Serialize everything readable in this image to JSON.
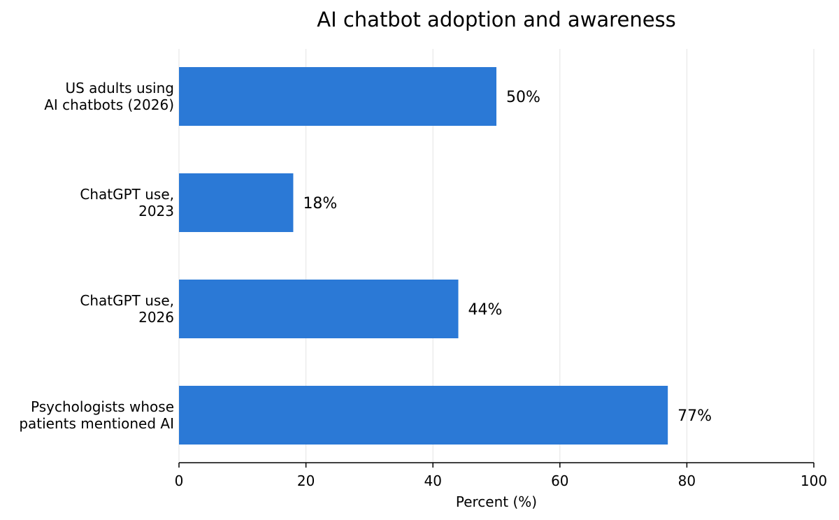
{
  "chart_data": {
    "type": "bar",
    "orientation": "horizontal",
    "title": "AI chatbot adoption and awareness",
    "xlabel": "Percent (%)",
    "ylabel": "",
    "xlim": [
      0,
      100
    ],
    "xticks": [
      0,
      20,
      40,
      60,
      80,
      100
    ],
    "grid": "vertical",
    "categories": [
      [
        "US adults using",
        "AI chatbots (2026)"
      ],
      [
        "ChatGPT use,",
        "2023"
      ],
      [
        "ChatGPT use,",
        "2026"
      ],
      [
        "Psychologists whose",
        "patients mentioned AI"
      ]
    ],
    "values": [
      50,
      18,
      44,
      77
    ],
    "value_labels": [
      "50%",
      "18%",
      "44%",
      "77%"
    ],
    "colors": {
      "bar": "#2b79d6",
      "grid": "#e3e3e3",
      "axis": "#000000"
    }
  }
}
